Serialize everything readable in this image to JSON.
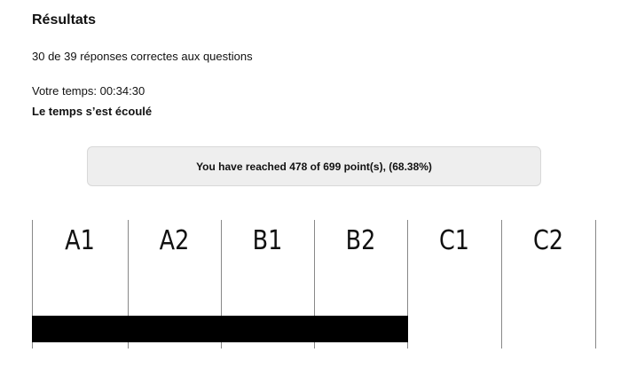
{
  "results": {
    "title": "Résultats",
    "summary": "30 de 39 réponses correctes aux questions",
    "time": "Votre temps: 00:34:30",
    "time_expired": "Le temps s’est écoulé",
    "points_message": "You have reached 478 of 699 point(s), (68.38%)"
  },
  "level_scale": {
    "levels": [
      "A1",
      "A2",
      "B1",
      "B2",
      "C1",
      "C2"
    ],
    "reached_level": "B2",
    "bar_color": "#000000"
  }
}
